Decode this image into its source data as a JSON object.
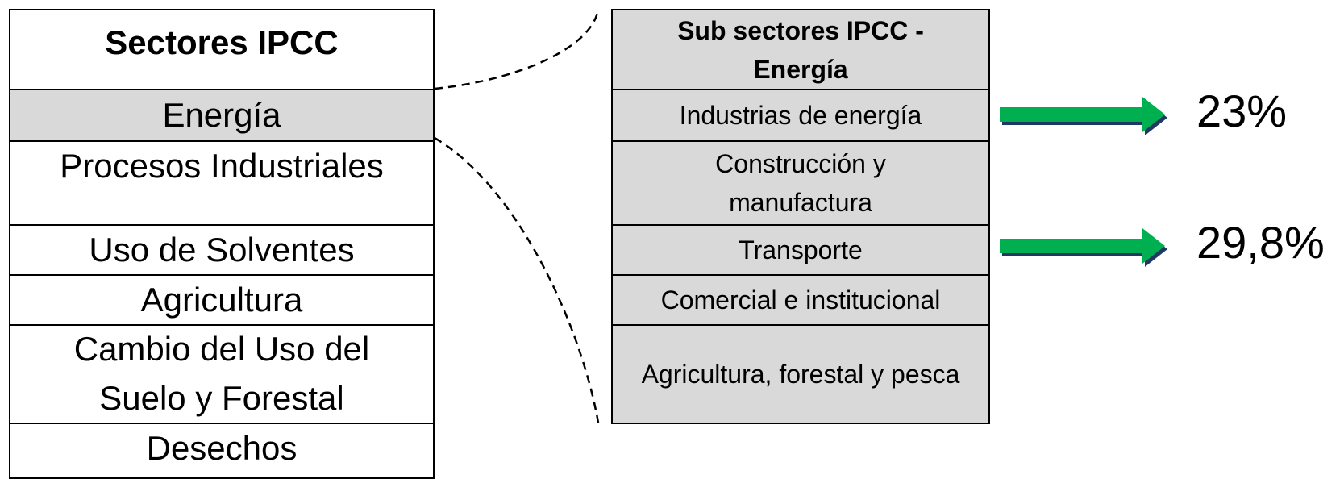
{
  "left_table": {
    "header": "Sectores IPCC",
    "rows": [
      "Energía",
      "Procesos Industriales",
      "Uso de Solventes",
      "Agricultura",
      "Cambio del Uso del Suelo y Forestal",
      "Desechos"
    ]
  },
  "right_table": {
    "header": "Sub sectores IPCC - Energía",
    "rows": [
      "Industrias de energía",
      "Construcción y manufactura",
      "Transporte",
      "Comercial e institucional",
      "Agricultura, forestal y pesca"
    ]
  },
  "callouts": [
    {
      "label": "23%"
    },
    {
      "label": "29,8%"
    }
  ]
}
